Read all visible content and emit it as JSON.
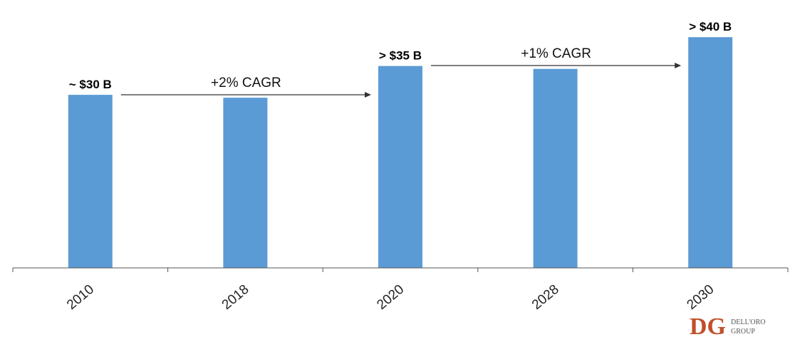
{
  "chart_data": {
    "type": "bar",
    "categories": [
      "2010",
      "2018",
      "2020",
      "2028",
      "2030"
    ],
    "values": [
      30,
      29.5,
      35,
      34.5,
      40
    ],
    "data_labels": [
      "~ $30 B",
      "",
      "> $35 B",
      "",
      "> $40 B"
    ],
    "ylim": [
      0,
      41.5
    ],
    "grid": false,
    "legend": "none",
    "annotations": [
      {
        "text": "+2% CAGR",
        "from": "2010",
        "to": "2020"
      },
      {
        "text": "+1% CAGR",
        "from": "2020",
        "to": "2030"
      }
    ],
    "colors": {
      "bar": "#5b9bd5",
      "arrow": "#333333",
      "axis": "#555555"
    }
  },
  "logo": {
    "mark": "DG",
    "line1": "DELL'ORO",
    "line2": "GROUP",
    "color": "#c0502a"
  }
}
